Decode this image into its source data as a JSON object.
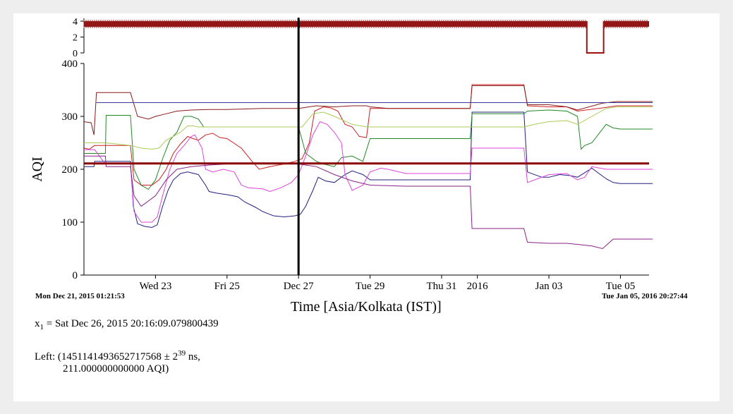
{
  "chart_data": {
    "type": "line",
    "ylabel": "AQI",
    "xlabel": "Time [Asia/Kolkata (IST)]",
    "x_range": [
      "Mon Dec 21, 2015 01:21:53",
      "Tue Jan 05, 2016 20:27:44"
    ],
    "ylim": [
      0,
      400
    ],
    "yticks": [
      "0",
      "100",
      "200",
      "300",
      "400"
    ],
    "xticks": [
      {
        "label": "Wed 23",
        "day": 2.0
      },
      {
        "label": "Fri 25",
        "day": 4.0
      },
      {
        "label": "Dec 27",
        "day": 6.0
      },
      {
        "label": "Tue 29",
        "day": 8.0
      },
      {
        "label": "Thu 31",
        "day": 10.0
      },
      {
        "label": "2016",
        "day": 11.0
      },
      {
        "label": "Jan 03",
        "day": 13.0
      },
      {
        "label": "Tue 05",
        "day": 15.0
      }
    ],
    "count_panel": {
      "ylim": [
        0,
        4
      ],
      "yticks": [
        "0",
        "2",
        "4"
      ],
      "level": 4,
      "dip_days": [
        14.06,
        14.53
      ],
      "dip_level": 0
    },
    "cursor_x": "Sat Dec 26, 2015 20:16:09.079800439",
    "threshold_value": 211,
    "series": [
      {
        "color": "#202080",
        "points": [
          [
            0,
            205
          ],
          [
            0.28,
            205
          ],
          [
            0.3,
            215
          ],
          [
            0.6,
            215
          ],
          [
            1.3,
            215
          ],
          [
            1.38,
            130
          ],
          [
            1.5,
            97
          ],
          [
            1.7,
            92
          ],
          [
            1.9,
            90
          ],
          [
            2.05,
            95
          ],
          [
            2.2,
            130
          ],
          [
            2.35,
            160
          ],
          [
            2.5,
            180
          ],
          [
            2.7,
            192
          ],
          [
            2.9,
            195
          ],
          [
            3.2,
            190
          ],
          [
            3.4,
            170
          ],
          [
            3.5,
            158
          ],
          [
            3.7,
            155
          ],
          [
            4.0,
            152
          ],
          [
            4.3,
            148
          ],
          [
            4.5,
            138
          ],
          [
            4.8,
            128
          ],
          [
            5.0,
            120
          ],
          [
            5.3,
            112
          ],
          [
            5.6,
            110
          ],
          [
            5.9,
            112
          ],
          [
            6.05,
            115
          ],
          [
            6.2,
            130
          ],
          [
            6.4,
            160
          ],
          [
            6.55,
            185
          ],
          [
            6.75,
            178
          ],
          [
            7.0,
            175
          ],
          [
            7.3,
            190
          ],
          [
            7.5,
            197
          ],
          [
            7.8,
            190
          ],
          [
            8.0,
            180
          ],
          [
            9.0,
            180
          ],
          [
            9.5,
            180
          ],
          [
            10.8,
            180
          ],
          [
            10.85,
            308
          ],
          [
            12.3,
            308
          ],
          [
            12.4,
            195
          ],
          [
            12.8,
            185
          ],
          [
            13.0,
            185
          ],
          [
            13.3,
            190
          ],
          [
            13.6,
            188
          ],
          [
            13.8,
            185
          ],
          [
            14.2,
            202
          ],
          [
            14.6,
            182
          ],
          [
            14.8,
            175
          ],
          [
            15.0,
            173
          ],
          [
            15.9,
            173
          ]
        ]
      },
      {
        "color": "#cc2020",
        "points": [
          [
            0,
            240
          ],
          [
            0.15,
            238
          ],
          [
            0.3,
            245
          ],
          [
            0.6,
            245
          ],
          [
            1.3,
            245
          ],
          [
            1.4,
            180
          ],
          [
            1.6,
            170
          ],
          [
            1.9,
            170
          ],
          [
            2.1,
            180
          ],
          [
            2.3,
            200
          ],
          [
            2.5,
            230
          ],
          [
            2.7,
            248
          ],
          [
            2.9,
            262
          ],
          [
            3.05,
            258
          ],
          [
            3.2,
            255
          ],
          [
            3.4,
            265
          ],
          [
            3.6,
            268
          ],
          [
            3.8,
            260
          ],
          [
            4.0,
            258
          ],
          [
            4.4,
            240
          ],
          [
            4.7,
            215
          ],
          [
            4.9,
            200
          ],
          [
            5.2,
            205
          ],
          [
            5.6,
            210
          ],
          [
            5.9,
            215
          ],
          [
            6.1,
            220
          ],
          [
            6.3,
            250
          ],
          [
            6.45,
            310
          ],
          [
            6.7,
            318
          ],
          [
            6.9,
            316
          ],
          [
            7.1,
            310
          ],
          [
            7.3,
            285
          ],
          [
            7.5,
            280
          ],
          [
            7.7,
            262
          ],
          [
            7.9,
            260
          ],
          [
            8.0,
            315
          ],
          [
            9.0,
            315
          ],
          [
            10.8,
            315
          ],
          [
            10.85,
            360
          ],
          [
            12.3,
            360
          ],
          [
            12.4,
            320
          ],
          [
            13.0,
            318
          ],
          [
            13.5,
            318
          ],
          [
            13.8,
            310
          ],
          [
            14.5,
            316
          ],
          [
            14.9,
            320
          ],
          [
            15.9,
            320
          ]
        ]
      },
      {
        "color": "#228822",
        "points": [
          [
            0,
            230
          ],
          [
            0.6,
            230
          ],
          [
            0.62,
            302
          ],
          [
            1.3,
            302
          ],
          [
            1.4,
            200
          ],
          [
            1.6,
            170
          ],
          [
            1.8,
            162
          ],
          [
            2.0,
            180
          ],
          [
            2.2,
            220
          ],
          [
            2.4,
            255
          ],
          [
            2.6,
            270
          ],
          [
            2.8,
            300
          ],
          [
            3.0,
            300
          ],
          [
            3.2,
            295
          ],
          [
            3.35,
            280
          ],
          [
            3.5,
            280
          ],
          [
            3.9,
            280
          ],
          [
            6.0,
            280
          ],
          [
            6.2,
            230
          ],
          [
            6.5,
            215
          ],
          [
            6.7,
            210
          ],
          [
            7.0,
            205
          ],
          [
            7.2,
            222
          ],
          [
            7.5,
            225
          ],
          [
            7.8,
            215
          ],
          [
            8.0,
            258
          ],
          [
            9.0,
            258
          ],
          [
            10.8,
            258
          ],
          [
            10.85,
            305
          ],
          [
            12.3,
            305
          ],
          [
            12.4,
            310
          ],
          [
            13.0,
            312
          ],
          [
            13.5,
            310
          ],
          [
            13.8,
            300
          ],
          [
            13.9,
            238
          ],
          [
            14.0,
            245
          ],
          [
            14.2,
            250
          ],
          [
            14.6,
            285
          ],
          [
            14.8,
            278
          ],
          [
            15.0,
            276
          ],
          [
            15.9,
            276
          ]
        ]
      },
      {
        "color": "#aacc55",
        "points": [
          [
            0,
            250
          ],
          [
            0.6,
            250
          ],
          [
            1.3,
            245
          ],
          [
            1.6,
            240
          ],
          [
            1.9,
            238
          ],
          [
            2.1,
            240
          ],
          [
            2.3,
            255
          ],
          [
            2.5,
            262
          ],
          [
            2.7,
            270
          ],
          [
            2.9,
            282
          ],
          [
            3.05,
            282
          ],
          [
            3.2,
            280
          ],
          [
            3.5,
            280
          ],
          [
            6.0,
            280
          ],
          [
            6.1,
            280
          ],
          [
            6.4,
            305
          ],
          [
            6.7,
            308
          ],
          [
            7.0,
            300
          ],
          [
            7.5,
            285
          ],
          [
            7.9,
            280
          ],
          [
            10.8,
            280
          ],
          [
            12.3,
            280
          ],
          [
            12.6,
            285
          ],
          [
            13.0,
            290
          ],
          [
            13.5,
            292
          ],
          [
            13.8,
            285
          ],
          [
            14.2,
            300
          ],
          [
            14.6,
            315
          ],
          [
            14.9,
            318
          ],
          [
            15.9,
            318
          ]
        ]
      },
      {
        "color": "#8b1a1a",
        "points": [
          [
            0,
            290
          ],
          [
            0.2,
            288
          ],
          [
            0.28,
            265
          ],
          [
            0.35,
            345
          ],
          [
            1.3,
            345
          ],
          [
            1.5,
            300
          ],
          [
            1.8,
            295
          ],
          [
            2.0,
            300
          ],
          [
            2.3,
            305
          ],
          [
            2.6,
            310
          ],
          [
            3.0,
            312
          ],
          [
            3.5,
            313
          ],
          [
            4.0,
            313
          ],
          [
            5.0,
            315
          ],
          [
            6.0,
            315
          ],
          [
            6.5,
            320
          ],
          [
            7.0,
            318
          ],
          [
            7.5,
            320
          ],
          [
            7.9,
            320
          ],
          [
            8.0,
            318
          ],
          [
            8.5,
            315
          ],
          [
            9.0,
            315
          ],
          [
            10.8,
            315
          ],
          [
            10.85,
            358
          ],
          [
            12.3,
            358
          ],
          [
            12.4,
            322
          ],
          [
            13.0,
            322
          ],
          [
            13.5,
            318
          ],
          [
            13.8,
            312
          ],
          [
            14.5,
            325
          ],
          [
            14.9,
            328
          ],
          [
            15.9,
            328
          ]
        ]
      },
      {
        "color": "#dd44dd",
        "points": [
          [
            0,
            237
          ],
          [
            0.3,
            237
          ],
          [
            0.6,
            210
          ],
          [
            1.3,
            210
          ],
          [
            1.4,
            120
          ],
          [
            1.6,
            100
          ],
          [
            1.9,
            100
          ],
          [
            2.05,
            110
          ],
          [
            2.2,
            150
          ],
          [
            2.4,
            200
          ],
          [
            2.6,
            230
          ],
          [
            2.8,
            245
          ],
          [
            3.0,
            262
          ],
          [
            3.1,
            265
          ],
          [
            3.3,
            240
          ],
          [
            3.4,
            200
          ],
          [
            3.6,
            195
          ],
          [
            3.9,
            200
          ],
          [
            4.2,
            195
          ],
          [
            4.4,
            170
          ],
          [
            4.6,
            165
          ],
          [
            5.0,
            163
          ],
          [
            5.2,
            158
          ],
          [
            5.5,
            165
          ],
          [
            5.8,
            175
          ],
          [
            6.0,
            190
          ],
          [
            6.2,
            225
          ],
          [
            6.4,
            265
          ],
          [
            6.6,
            290
          ],
          [
            6.8,
            285
          ],
          [
            7.0,
            270
          ],
          [
            7.2,
            250
          ],
          [
            7.3,
            190
          ],
          [
            7.5,
            160
          ],
          [
            7.8,
            170
          ],
          [
            8.0,
            195
          ],
          [
            8.3,
            202
          ],
          [
            8.5,
            200
          ],
          [
            9.0,
            192
          ],
          [
            10.8,
            192
          ],
          [
            10.85,
            240
          ],
          [
            12.3,
            240
          ],
          [
            12.4,
            175
          ],
          [
            13.0,
            190
          ],
          [
            13.5,
            192
          ],
          [
            13.8,
            180
          ],
          [
            14.0,
            185
          ],
          [
            14.2,
            205
          ],
          [
            14.6,
            200
          ],
          [
            15.0,
            200
          ],
          [
            15.9,
            200
          ]
        ]
      },
      {
        "color": "#882288",
        "points": [
          [
            0,
            225
          ],
          [
            0.6,
            225
          ],
          [
            0.62,
            205
          ],
          [
            1.3,
            205
          ],
          [
            1.4,
            150
          ],
          [
            1.6,
            130
          ],
          [
            2.0,
            150
          ],
          [
            2.3,
            180
          ],
          [
            2.6,
            200
          ],
          [
            3.0,
            205
          ],
          [
            3.5,
            208
          ],
          [
            4.0,
            210
          ],
          [
            5.0,
            210
          ],
          [
            6.0,
            210
          ],
          [
            6.5,
            205
          ],
          [
            7.0,
            190
          ],
          [
            7.5,
            178
          ],
          [
            8.0,
            170
          ],
          [
            9.0,
            168
          ],
          [
            10.8,
            168
          ],
          [
            10.85,
            88
          ],
          [
            12.3,
            88
          ],
          [
            12.4,
            62
          ],
          [
            13.0,
            60
          ],
          [
            13.5,
            60
          ],
          [
            13.8,
            58
          ],
          [
            14.2,
            55
          ],
          [
            14.5,
            50
          ],
          [
            14.8,
            68
          ],
          [
            15.0,
            68
          ],
          [
            15.9,
            68
          ]
        ]
      },
      {
        "color": "#3a3a9a",
        "points": [
          [
            0.35,
            326
          ],
          [
            15.9,
            326
          ]
        ]
      }
    ]
  },
  "readout": {
    "x1_name": "x",
    "x1_sub": "1",
    "x1_value": " = Sat Dec 26, 2015 20:16:09.079800439",
    "left_prefix": "Left: (1451141493652717568 ± 2",
    "left_exp": "39",
    "left_suffix": " ns,",
    "left_line2": "211.000000000000 AQI)"
  }
}
